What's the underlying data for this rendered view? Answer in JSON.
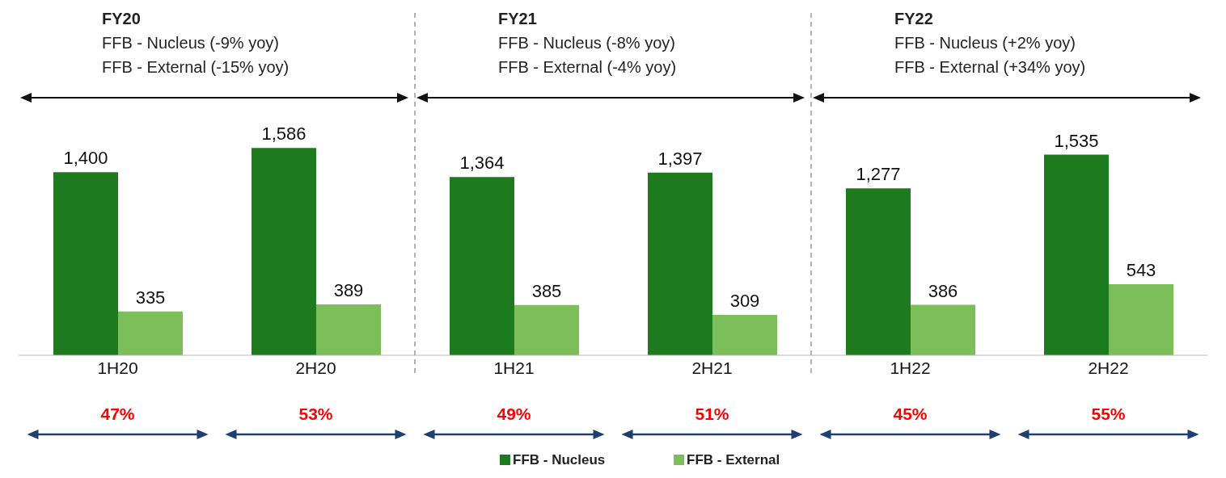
{
  "chart_data": {
    "type": "bar",
    "categories": [
      "1H20",
      "2H20",
      "1H21",
      "2H21",
      "1H22",
      "2H22"
    ],
    "series": [
      {
        "name": "FFB - Nucleus",
        "color": "#1e7a1e",
        "values": [
          1400,
          1586,
          1364,
          1397,
          1277,
          1535
        ],
        "value_labels": [
          "1,400",
          "1,586",
          "1,364",
          "1,397",
          "1,277",
          "1,535"
        ]
      },
      {
        "name": "FFB - External",
        "color": "#7cbf5a",
        "values": [
          335,
          389,
          385,
          309,
          386,
          543
        ],
        "value_labels": [
          "335",
          "389",
          "385",
          "309",
          "386",
          "543"
        ]
      }
    ],
    "legend": "bottom",
    "annotations": [
      "FY20",
      "FFB - Nucleus (-9% yoy)",
      "FFB - External (-15% yoy)",
      "FY21",
      "FFB - Nucleus (-8% yoy)",
      "FFB - External (-4% yoy)",
      "FY22",
      "FFB - Nucleus (+2% yoy)",
      "FFB - External (+34% yoy)",
      "47%",
      "53%",
      "49%",
      "51%",
      "45%",
      "55%"
    ]
  }
}
